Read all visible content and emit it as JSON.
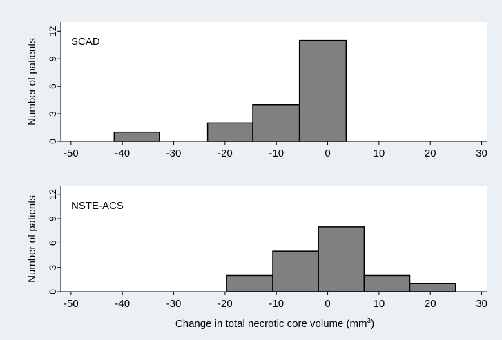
{
  "figure": {
    "xlabel_prefix": "Change in total necrotic core volume (mm",
    "xlabel_sup": "3",
    "xlabel_suffix": ")"
  },
  "colors": {
    "background": "#eaf0f3",
    "plot_area": "#ffffff",
    "bar_fill": "#808080",
    "bar_stroke": "#000000"
  },
  "chart_data": [
    {
      "type": "bar",
      "title": "SCAD",
      "ylabel": "Number of patients",
      "xlabel": "",
      "xlim": [
        -52,
        31
      ],
      "ylim": [
        0,
        13
      ],
      "xticks": [
        "-50",
        "-40",
        "-30",
        "-20",
        "-10",
        "0",
        "10",
        "20",
        "30"
      ],
      "xtick_values": [
        -50,
        -40,
        -30,
        -20,
        -10,
        0,
        10,
        20,
        30
      ],
      "yticks": [
        "0",
        "3",
        "6",
        "9",
        "12"
      ],
      "ytick_values": [
        0,
        3,
        6,
        9,
        12
      ],
      "grid": false,
      "bins": [
        {
          "x0": -41.6,
          "x1": -32.8,
          "count": 1
        },
        {
          "x0": -23.4,
          "x1": -14.6,
          "count": 2
        },
        {
          "x0": -14.6,
          "x1": -5.5,
          "count": 4
        },
        {
          "x0": -5.5,
          "x1": 3.6,
          "count": 11
        }
      ]
    },
    {
      "type": "bar",
      "title": "NSTE-ACS",
      "ylabel": "Number of patients",
      "xlabel": "",
      "xlim": [
        -52,
        31
      ],
      "ylim": [
        0,
        13
      ],
      "xticks": [
        "-50",
        "-40",
        "-30",
        "-20",
        "-10",
        "0",
        "10",
        "20",
        "30"
      ],
      "xtick_values": [
        -50,
        -40,
        -30,
        -20,
        -10,
        0,
        10,
        20,
        30
      ],
      "yticks": [
        "0",
        "3",
        "6",
        "9",
        "12"
      ],
      "ytick_values": [
        0,
        3,
        6,
        9,
        12
      ],
      "grid": false,
      "bins": [
        {
          "x0": -19.7,
          "x1": -10.7,
          "count": 2
        },
        {
          "x0": -10.7,
          "x1": -1.8,
          "count": 5
        },
        {
          "x0": -1.8,
          "x1": 7.1,
          "count": 8
        },
        {
          "x0": 7.1,
          "x1": 16.0,
          "count": 2
        },
        {
          "x0": 16.0,
          "x1": 24.9,
          "count": 1
        }
      ]
    }
  ]
}
